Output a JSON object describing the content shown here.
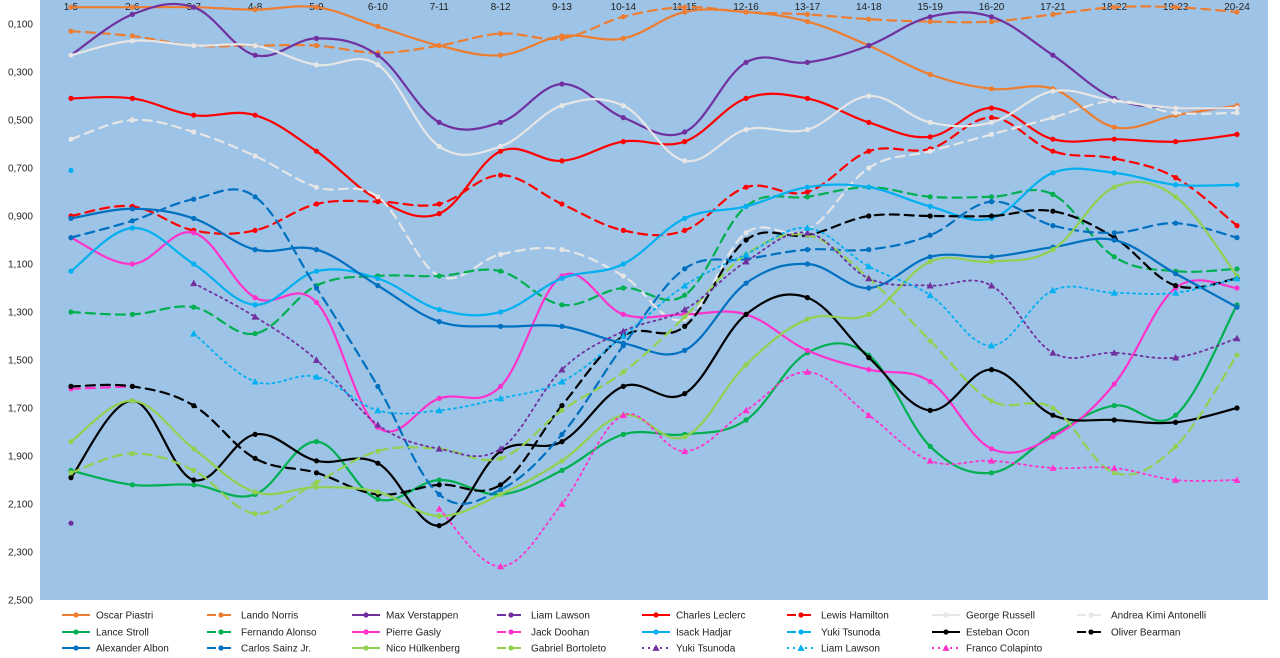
{
  "chart_data": {
    "type": "line",
    "title": "",
    "xlabel": "",
    "ylabel": "",
    "ylim": [
      0,
      2.5
    ],
    "y_reversed": true,
    "y_ticks": [
      "0,100",
      "0,300",
      "0,500",
      "0,700",
      "0,900",
      "1,100",
      "1,300",
      "1,500",
      "1,700",
      "1,900",
      "2,100",
      "2,300",
      "2,500"
    ],
    "y_tick_values": [
      0.1,
      0.3,
      0.5,
      0.7,
      0.9,
      1.1,
      1.3,
      1.5,
      1.7,
      1.9,
      2.1,
      2.3,
      2.5
    ],
    "categories": [
      "1-5",
      "2-6",
      "3-7",
      "4-8",
      "5-9",
      "6-10",
      "7-11",
      "8-12",
      "9-13",
      "10-14",
      "11-15",
      "12-16",
      "13-17",
      "14-18",
      "15-19",
      "16-20",
      "17-21",
      "18-22",
      "19-23",
      "20-24"
    ],
    "plot_background": "#9dc3e6",
    "series": [
      {
        "name": "Oscar Piastri",
        "color": "#ed7d31",
        "style": "solid",
        "marker": "circle",
        "values": [
          0.03,
          0.03,
          0.03,
          0.04,
          0.03,
          0.11,
          0.19,
          0.23,
          0.15,
          0.16,
          0.05,
          0.05,
          0.09,
          0.19,
          0.31,
          0.37,
          0.37,
          0.53,
          0.48,
          0.44
        ]
      },
      {
        "name": "Lando Norris",
        "color": "#ed7d31",
        "style": "dash",
        "marker": "circle",
        "values": [
          0.13,
          0.15,
          0.19,
          0.19,
          0.19,
          0.22,
          0.19,
          0.14,
          0.16,
          0.07,
          0.03,
          0.05,
          0.06,
          0.08,
          0.09,
          0.09,
          0.06,
          0.03,
          0.03,
          0.05
        ]
      },
      {
        "name": "Max Verstappen",
        "color": "#7030a0",
        "style": "solid",
        "marker": "circle",
        "values": [
          0.23,
          0.06,
          0.03,
          0.23,
          0.16,
          0.23,
          0.51,
          0.51,
          0.35,
          0.49,
          0.55,
          0.26,
          0.26,
          0.19,
          0.07,
          0.07,
          0.23,
          0.41,
          0.45,
          0.45
        ]
      },
      {
        "name": "Liam Lawson",
        "color": "#7030a0",
        "style": "dash",
        "marker": "circle",
        "values": [
          2.18,
          null,
          null,
          null,
          null,
          null,
          null,
          null,
          null,
          null,
          null,
          null,
          null,
          null,
          null,
          null,
          null,
          null,
          null,
          null
        ]
      },
      {
        "name": "Charles Leclerc",
        "color": "#ff0000",
        "style": "solid",
        "marker": "circle",
        "values": [
          0.41,
          0.41,
          0.48,
          0.48,
          0.63,
          0.83,
          0.89,
          0.63,
          0.67,
          0.59,
          0.59,
          0.41,
          0.41,
          0.51,
          0.57,
          0.45,
          0.58,
          0.58,
          0.59,
          0.56
        ]
      },
      {
        "name": "Lewis Hamilton",
        "color": "#ff0000",
        "style": "dash",
        "marker": "circle",
        "values": [
          0.9,
          0.86,
          0.96,
          0.96,
          0.85,
          0.84,
          0.85,
          0.73,
          0.85,
          0.96,
          0.96,
          0.78,
          0.8,
          0.63,
          0.62,
          0.49,
          0.63,
          0.66,
          0.74,
          0.94
        ]
      },
      {
        "name": "George Russell",
        "color": "#e6e6e6",
        "style": "solid",
        "marker": "circle",
        "values": [
          0.23,
          0.17,
          0.19,
          0.19,
          0.27,
          0.27,
          0.61,
          0.61,
          0.44,
          0.44,
          0.67,
          0.54,
          0.54,
          0.4,
          0.51,
          0.51,
          0.38,
          0.42,
          0.45,
          0.45
        ]
      },
      {
        "name": "Andrea Kimi Antonelli",
        "color": "#e6e6e6",
        "style": "dash",
        "marker": "circle",
        "values": [
          0.58,
          0.5,
          0.55,
          0.65,
          0.78,
          0.82,
          1.15,
          1.06,
          1.04,
          1.15,
          1.33,
          0.97,
          0.96,
          0.7,
          0.63,
          0.56,
          0.49,
          0.42,
          0.47,
          0.47
        ]
      },
      {
        "name": "Lance Stroll",
        "color": "#00b050",
        "style": "solid",
        "marker": "circle",
        "values": [
          1.96,
          2.02,
          2.02,
          2.06,
          1.84,
          2.08,
          2.0,
          2.06,
          1.96,
          1.81,
          1.81,
          1.75,
          1.47,
          1.48,
          1.86,
          1.97,
          1.81,
          1.69,
          1.73,
          1.27
        ]
      },
      {
        "name": "Fernando Alonso",
        "color": "#00b050",
        "style": "dash",
        "marker": "circle",
        "values": [
          1.3,
          1.31,
          1.28,
          1.39,
          1.19,
          1.15,
          1.15,
          1.13,
          1.27,
          1.2,
          1.23,
          0.86,
          0.82,
          0.78,
          0.82,
          0.82,
          0.81,
          1.07,
          1.13,
          1.12
        ]
      },
      {
        "name": "Pierre Gasly",
        "color": "#ff33cc",
        "style": "solid",
        "marker": "circle",
        "values": [
          0.99,
          1.1,
          0.97,
          1.24,
          1.26,
          1.78,
          1.66,
          1.61,
          1.15,
          1.31,
          1.31,
          1.31,
          1.46,
          1.54,
          1.59,
          1.87,
          1.82,
          1.6,
          1.2,
          1.2
        ]
      },
      {
        "name": "Jack Doohan",
        "color": "#ff33cc",
        "style": "dash",
        "marker": "circle",
        "values": [
          1.62,
          1.61,
          null,
          null,
          null,
          null,
          null,
          null,
          null,
          null,
          null,
          null,
          null,
          null,
          null,
          null,
          null,
          null,
          null,
          null
        ]
      },
      {
        "name": "Isack Hadjar",
        "color": "#00b0f0",
        "style": "solid",
        "marker": "circle",
        "values": [
          1.13,
          0.95,
          1.1,
          1.27,
          1.13,
          1.16,
          1.29,
          1.3,
          1.16,
          1.1,
          0.91,
          0.86,
          0.78,
          0.78,
          0.86,
          0.91,
          0.72,
          0.72,
          0.77,
          0.77
        ]
      },
      {
        "name": "Yuki Tsunoda",
        "color": "#00b0f0",
        "style": "dash",
        "marker": "circle",
        "values": [
          0.71,
          null,
          null,
          null,
          null,
          null,
          null,
          null,
          null,
          null,
          null,
          null,
          null,
          null,
          null,
          null,
          null,
          null,
          null,
          null
        ]
      },
      {
        "name": "Esteban Ocon",
        "color": "#000000",
        "style": "solid",
        "marker": "circle",
        "values": [
          1.99,
          1.67,
          2.0,
          1.81,
          1.92,
          1.93,
          2.19,
          1.88,
          1.84,
          1.61,
          1.64,
          1.31,
          1.24,
          1.49,
          1.71,
          1.54,
          1.73,
          1.75,
          1.76,
          1.7
        ]
      },
      {
        "name": "Oliver Bearman",
        "color": "#000000",
        "style": "dash",
        "marker": "circle",
        "values": [
          1.61,
          1.61,
          1.69,
          1.91,
          1.97,
          2.06,
          2.02,
          2.02,
          1.69,
          1.4,
          1.36,
          1.0,
          0.98,
          0.9,
          0.9,
          0.9,
          0.88,
          0.99,
          1.19,
          1.16
        ]
      },
      {
        "name": "Alexander Albon",
        "color": "#0070c0",
        "style": "solid",
        "marker": "circle",
        "values": [
          0.91,
          0.87,
          0.91,
          1.04,
          1.04,
          1.19,
          1.34,
          1.36,
          1.36,
          1.43,
          1.46,
          1.18,
          1.1,
          1.2,
          1.07,
          1.07,
          1.03,
          1.0,
          1.14,
          1.28
        ]
      },
      {
        "name": "Carlos Sainz Jr.",
        "color": "#0070c0",
        "style": "dash",
        "marker": "circle",
        "values": [
          0.99,
          0.92,
          0.83,
          0.82,
          1.2,
          1.61,
          2.06,
          2.04,
          1.81,
          1.44,
          1.12,
          1.08,
          1.04,
          1.04,
          0.98,
          0.84,
          0.94,
          0.97,
          0.93,
          0.99
        ]
      },
      {
        "name": "Nico Hülkenberg",
        "color": "#92d050",
        "style": "solid",
        "marker": "circle",
        "values": [
          1.84,
          1.67,
          1.87,
          2.05,
          2.03,
          2.05,
          2.15,
          2.06,
          1.92,
          1.73,
          1.82,
          1.52,
          1.33,
          1.31,
          1.09,
          1.09,
          1.04,
          0.78,
          0.82,
          1.15
        ]
      },
      {
        "name": "Gabriel Bortoleto",
        "color": "#92d050",
        "style": "dash",
        "marker": "circle",
        "values": [
          1.97,
          1.89,
          1.96,
          2.14,
          2.01,
          1.88,
          1.87,
          1.91,
          1.71,
          1.55,
          1.32,
          1.06,
          0.98,
          1.16,
          1.42,
          1.67,
          1.7,
          1.97,
          1.86,
          1.48
        ]
      },
      {
        "name": "Yuki Tsunoda",
        "color": "#7030a0",
        "style": "dot",
        "marker": "triangle",
        "values": [
          null,
          null,
          1.18,
          1.32,
          1.5,
          1.77,
          1.87,
          1.87,
          1.54,
          1.38,
          1.29,
          1.09,
          0.97,
          1.16,
          1.19,
          1.19,
          1.47,
          1.47,
          1.49,
          1.41
        ]
      },
      {
        "name": "Liam Lawson",
        "color": "#00b0f0",
        "style": "dot",
        "marker": "triangle",
        "values": [
          null,
          null,
          1.39,
          1.59,
          1.57,
          1.71,
          1.71,
          1.66,
          1.59,
          1.4,
          1.19,
          1.06,
          0.95,
          1.11,
          1.23,
          1.44,
          1.21,
          1.22,
          1.22,
          1.16
        ]
      },
      {
        "name": "Franco Colapinto",
        "color": "#ff33cc",
        "style": "dot",
        "marker": "triangle",
        "values": [
          null,
          null,
          null,
          null,
          null,
          null,
          2.12,
          2.36,
          2.1,
          1.73,
          1.88,
          1.71,
          1.55,
          1.73,
          1.92,
          1.92,
          1.95,
          1.95,
          2.0,
          2.0
        ]
      }
    ]
  }
}
